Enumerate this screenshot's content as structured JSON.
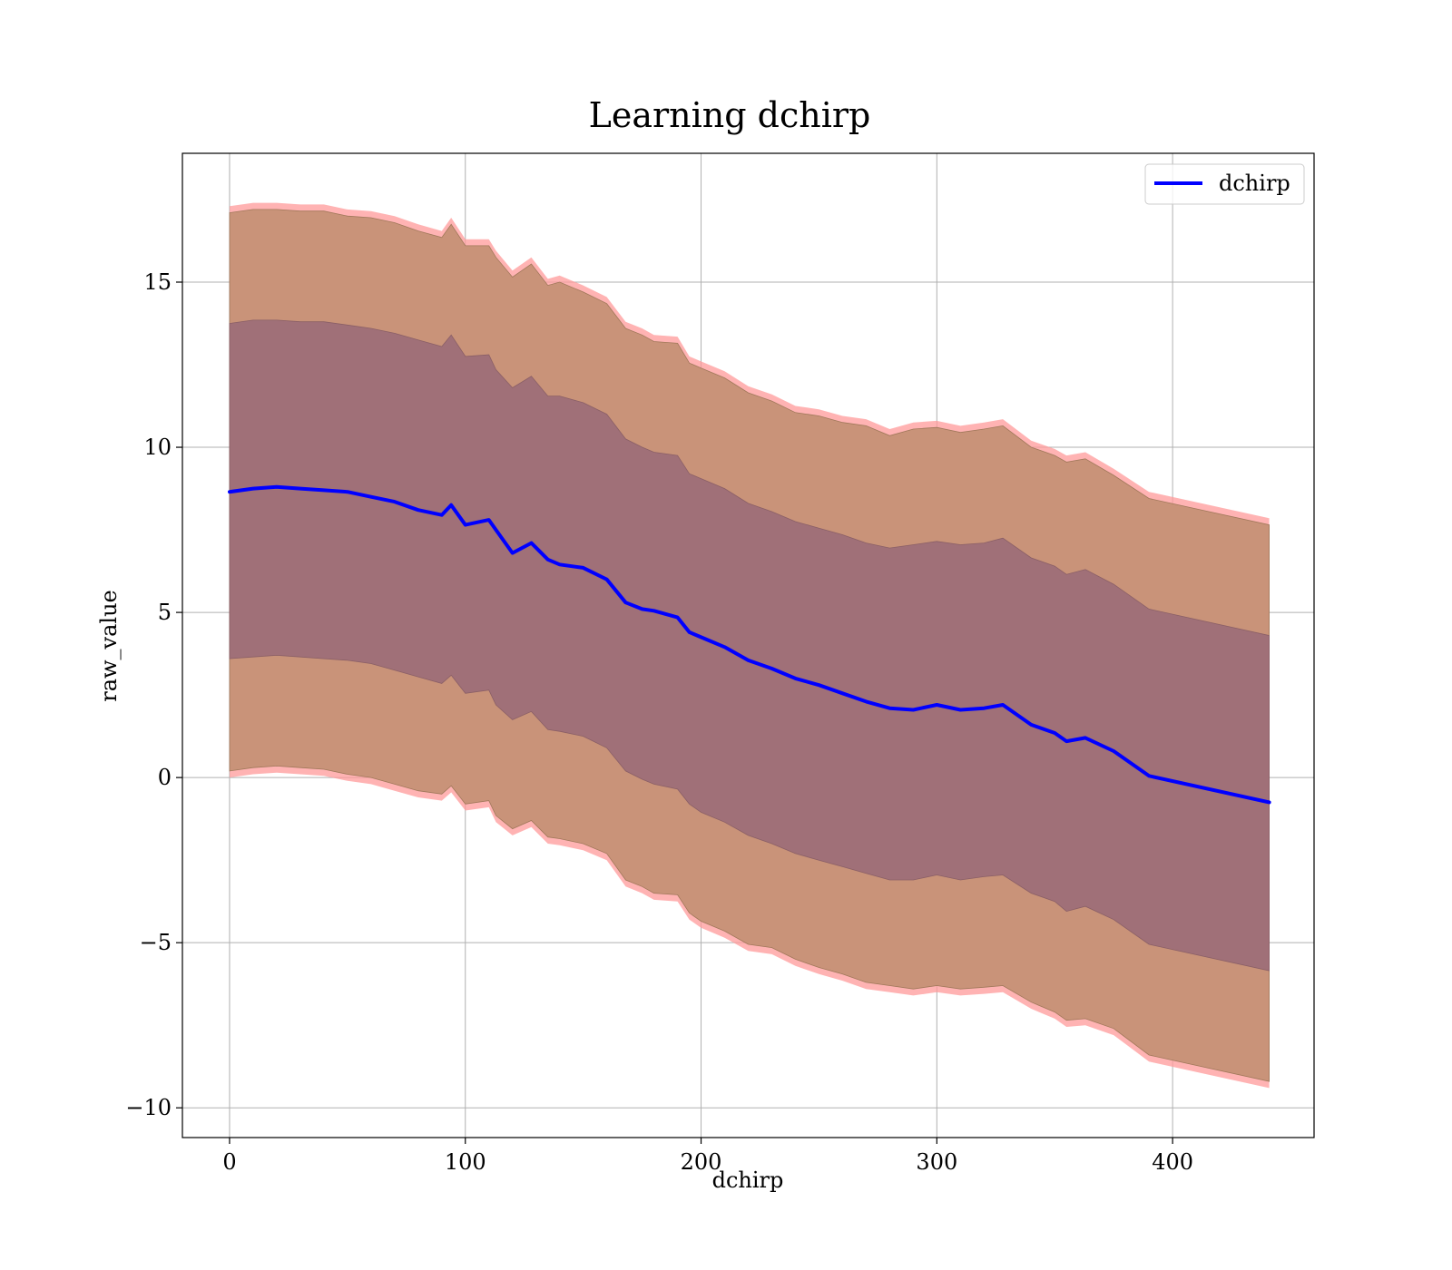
{
  "chart_data": {
    "type": "line",
    "title": "Learning dchirp",
    "xlabel": "dchirp",
    "ylabel": "raw_value",
    "xlim": [
      -20,
      460
    ],
    "ylim": [
      -10.9,
      18.9
    ],
    "xticks": [
      0,
      100,
      200,
      300,
      400
    ],
    "yticks": [
      -10,
      -5,
      0,
      5,
      10,
      15
    ],
    "xtick_labels": [
      "0",
      "100",
      "200",
      "300",
      "400"
    ],
    "ytick_labels": [
      "−10",
      "−5",
      "0",
      "5",
      "10",
      "15"
    ],
    "grid": true,
    "legend": {
      "position": "top-right",
      "entries": [
        "dchirp"
      ]
    },
    "colors": {
      "line": "#0000ff",
      "outer_band_edge": "#ff9999",
      "outer_band": "#c99379",
      "inner_band": "#a07078",
      "grid": "#b0b0b0"
    },
    "x": [
      0,
      10,
      20,
      30,
      40,
      50,
      60,
      70,
      80,
      90,
      94,
      100,
      110,
      113,
      120,
      128,
      135,
      140,
      150,
      160,
      168,
      175,
      180,
      190,
      195,
      200,
      210,
      220,
      230,
      240,
      250,
      260,
      270,
      280,
      290,
      300,
      310,
      320,
      328,
      340,
      350,
      355,
      363,
      375,
      390,
      441
    ],
    "series": [
      {
        "name": "dchirp",
        "values": [
          8.65,
          8.75,
          8.8,
          8.75,
          8.7,
          8.65,
          8.5,
          8.35,
          8.1,
          7.95,
          8.25,
          7.65,
          7.8,
          7.5,
          6.8,
          7.1,
          6.6,
          6.45,
          6.35,
          6.0,
          5.3,
          5.1,
          5.05,
          4.85,
          4.4,
          4.25,
          3.95,
          3.55,
          3.3,
          3.0,
          2.8,
          2.55,
          2.3,
          2.1,
          2.05,
          2.2,
          2.05,
          2.1,
          2.2,
          1.6,
          1.35,
          1.1,
          1.2,
          0.8,
          0.05,
          -0.75
        ]
      }
    ],
    "bands": [
      {
        "level": "outer",
        "upper": [
          17.3,
          17.4,
          17.4,
          17.35,
          17.35,
          17.2,
          17.15,
          17.0,
          16.75,
          16.55,
          16.95,
          16.3,
          16.3,
          15.95,
          15.35,
          15.75,
          15.1,
          15.2,
          14.9,
          14.55,
          13.8,
          13.6,
          13.4,
          13.35,
          12.75,
          12.6,
          12.3,
          11.85,
          11.6,
          11.25,
          11.15,
          10.95,
          10.85,
          10.55,
          10.75,
          10.8,
          10.65,
          10.75,
          10.85,
          10.2,
          9.95,
          9.75,
          9.85,
          9.35,
          8.65,
          7.85
        ],
        "lower": [
          0.0,
          0.1,
          0.15,
          0.1,
          0.05,
          -0.1,
          -0.2,
          -0.4,
          -0.6,
          -0.7,
          -0.45,
          -1.0,
          -0.9,
          -1.35,
          -1.75,
          -1.5,
          -2.0,
          -2.05,
          -2.2,
          -2.5,
          -3.3,
          -3.5,
          -3.7,
          -3.75,
          -4.3,
          -4.55,
          -4.85,
          -5.25,
          -5.35,
          -5.7,
          -5.95,
          -6.15,
          -6.4,
          -6.5,
          -6.6,
          -6.5,
          -6.6,
          -6.55,
          -6.5,
          -7.0,
          -7.3,
          -7.55,
          -7.5,
          -7.8,
          -8.6,
          -9.4
        ]
      },
      {
        "level": "inner",
        "upper": [
          13.75,
          13.85,
          13.85,
          13.8,
          13.8,
          13.7,
          13.6,
          13.45,
          13.25,
          13.05,
          13.4,
          12.75,
          12.8,
          12.35,
          11.8,
          12.15,
          11.55,
          11.55,
          11.35,
          11.0,
          10.25,
          10.0,
          9.85,
          9.75,
          9.2,
          9.05,
          8.75,
          8.3,
          8.05,
          7.75,
          7.55,
          7.35,
          7.1,
          6.95,
          7.05,
          7.15,
          7.05,
          7.1,
          7.25,
          6.65,
          6.4,
          6.15,
          6.3,
          5.85,
          5.1,
          4.3
        ],
        "lower": [
          3.6,
          3.65,
          3.7,
          3.65,
          3.6,
          3.55,
          3.45,
          3.25,
          3.05,
          2.85,
          3.1,
          2.55,
          2.65,
          2.2,
          1.75,
          2.0,
          1.45,
          1.4,
          1.25,
          0.9,
          0.2,
          -0.05,
          -0.2,
          -0.35,
          -0.8,
          -1.05,
          -1.35,
          -1.75,
          -2.0,
          -2.3,
          -2.5,
          -2.7,
          -2.9,
          -3.1,
          -3.1,
          -2.95,
          -3.1,
          -3.0,
          -2.95,
          -3.5,
          -3.75,
          -4.05,
          -3.9,
          -4.3,
          -5.05,
          -5.85
        ]
      }
    ]
  }
}
